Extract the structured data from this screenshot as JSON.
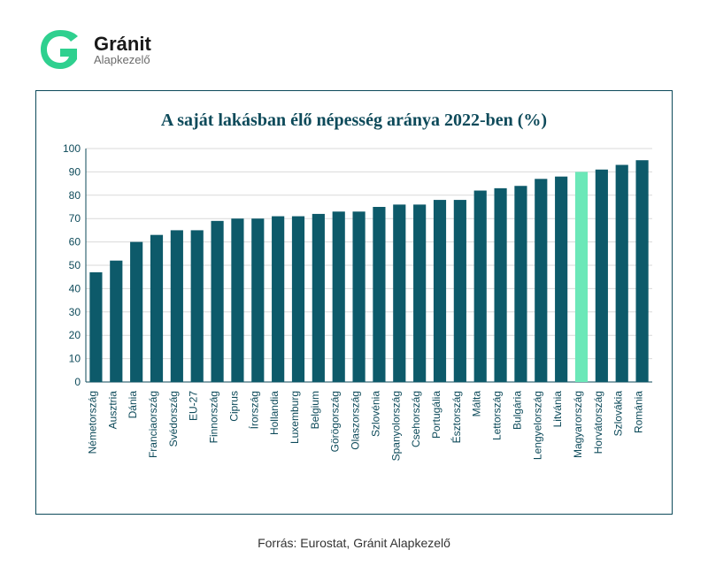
{
  "logo": {
    "mark_color": "#2fd08f",
    "brand_line1": "Gránit",
    "brand_line2": "Alapkezelő",
    "brand_line1_color": "#1a1a1a"
  },
  "chart": {
    "type": "bar",
    "title": "A saját lakásban élő népesség aránya 2022-ben (%)",
    "title_fontsize": 20,
    "title_color": "#0d4a5a",
    "border_color": "#0d4a5a",
    "background_color": "#ffffff",
    "grid_color": "#d9d9d9",
    "axis_font_color": "#0d4a5a",
    "bar_color": "#0d5a6a",
    "highlight_bar_color": "#6be8b8",
    "ylim": [
      0,
      100
    ],
    "ytick_step": 10,
    "bar_width": 0.62,
    "categories": [
      "Németország",
      "Ausztria",
      "Dánia",
      "Franciaország",
      "Svédország",
      "EU-27",
      "Finnország",
      "Ciprus",
      "Írország",
      "Hollandia",
      "Luxemburg",
      "Belgium",
      "Görögország",
      "Olaszország",
      "Szlovénia",
      "Spanyolország",
      "Csehország",
      "Portugália",
      "Észtország",
      "Málta",
      "Lettország",
      "Bulgária",
      "Lengyelország",
      "Litvánia",
      "Magyarország",
      "Horvátország",
      "Szlovákia",
      "Románia"
    ],
    "values": [
      47,
      52,
      60,
      63,
      65,
      65,
      69,
      70,
      70,
      71,
      71,
      72,
      73,
      73,
      75,
      76,
      76,
      78,
      78,
      82,
      83,
      84,
      87,
      88,
      90,
      91,
      93,
      95
    ],
    "highlight_index": 24,
    "label_fontsize": 12
  },
  "source_label": "Forrás: Eurostat, Gránit Alapkezelő"
}
